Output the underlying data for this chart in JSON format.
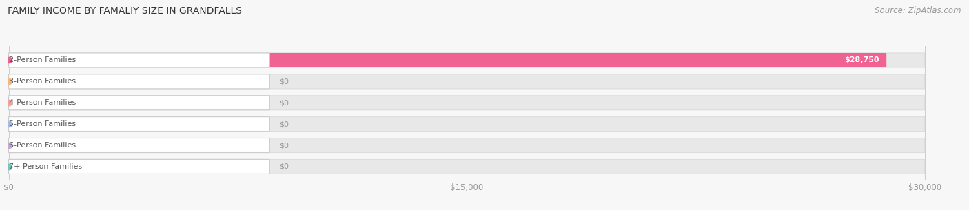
{
  "title": "FAMILY INCOME BY FAMALIY SIZE IN GRANDFALLS",
  "source": "Source: ZipAtlas.com",
  "categories": [
    "2-Person Families",
    "3-Person Families",
    "4-Person Families",
    "5-Person Families",
    "6-Person Families",
    "7+ Person Families"
  ],
  "values": [
    28750,
    0,
    0,
    0,
    0,
    0
  ],
  "bar_colors": [
    "#f06292",
    "#f5b87a",
    "#f5a09a",
    "#a8b8e8",
    "#c4a8d8",
    "#6ec8c0"
  ],
  "value_labels": [
    "$28,750",
    "$0",
    "$0",
    "$0",
    "$0",
    "$0"
  ],
  "xmax": 30000,
  "xticks": [
    0,
    15000,
    30000
  ],
  "xtick_labels": [
    "$0",
    "$15,000",
    "$30,000"
  ],
  "background_color": "#f7f7f7",
  "track_color": "#e8e8e8",
  "title_fontsize": 10,
  "source_fontsize": 8.5,
  "label_fontsize": 8,
  "value_fontsize": 8
}
